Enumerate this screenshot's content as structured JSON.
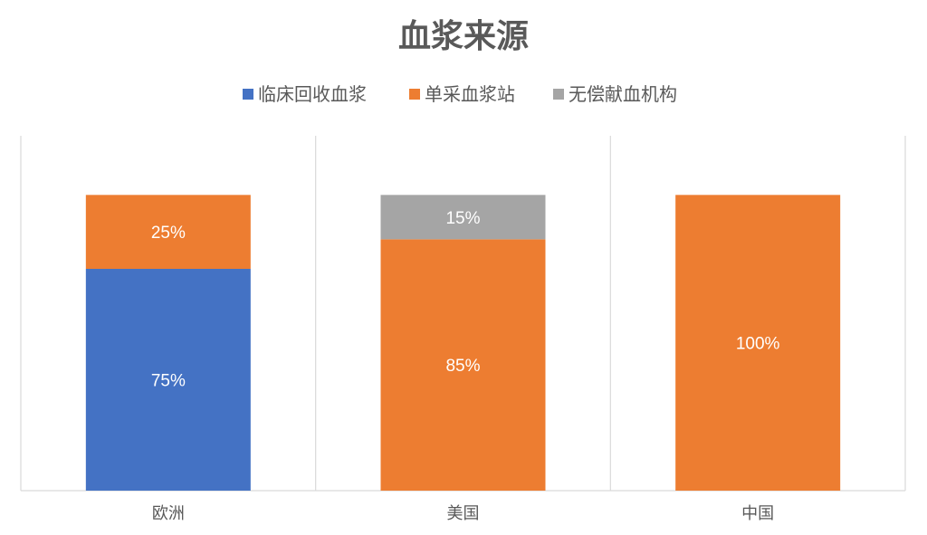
{
  "chart_data": {
    "type": "bar",
    "stacked": true,
    "title": "血浆来源",
    "categories": [
      "欧洲",
      "美国",
      "中国"
    ],
    "series": [
      {
        "name": "临床回收血浆",
        "color": "#4472C4",
        "values": [
          75,
          0,
          0
        ]
      },
      {
        "name": "单采血浆站",
        "color": "#ED7D31",
        "values": [
          25,
          85,
          100
        ]
      },
      {
        "name": "无偿献血机构",
        "color": "#A5A5A5",
        "values": [
          0,
          15,
          0
        ]
      }
    ],
    "data_labels": [
      [
        "75%",
        "",
        ""
      ],
      [
        "25%",
        "85%",
        "100%"
      ],
      [
        "",
        "15%",
        ""
      ]
    ],
    "ylim": [
      0,
      120
    ],
    "grid": false,
    "category_separators": true,
    "legend_position": "top"
  }
}
